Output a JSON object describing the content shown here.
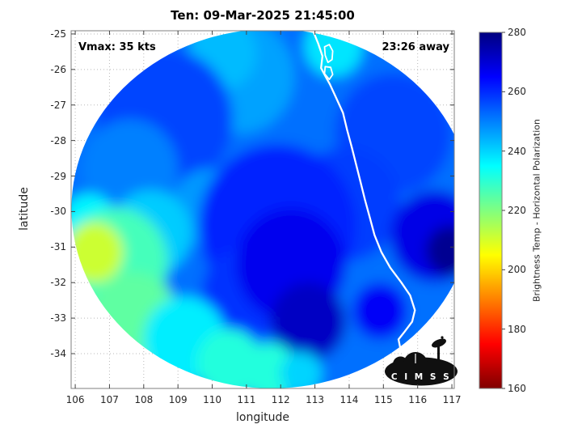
{
  "figure": {
    "title": "Ten: 09-Mar-2025 21:45:00",
    "annotations": {
      "vmax": "Vmax: 35 kts",
      "eta": "23:26 away"
    },
    "xlabel": "longitude",
    "ylabel": "latitude",
    "colorbar_label": "Brightness Temp - Horizontal Polarization",
    "logo_text": "C I M S S"
  },
  "chart_data": {
    "type": "heatmap",
    "title": "Ten: 09-Mar-2025 21:45:00",
    "xlabel": "longitude",
    "ylabel": "latitude",
    "xlim": [
      105.88,
      117.07
    ],
    "ylim": [
      -34.98,
      -24.91
    ],
    "x_ticks": [
      106,
      107,
      108,
      109,
      110,
      111,
      112,
      113,
      114,
      115,
      116,
      117
    ],
    "y_ticks": [
      -25,
      -26,
      -27,
      -28,
      -29,
      -30,
      -31,
      -32,
      -33,
      -34
    ],
    "grid": "dotted",
    "annotations": [
      {
        "text": "Vmax: 35 kts",
        "position": "top-left"
      },
      {
        "text": "23:26 away",
        "position": "top-right"
      }
    ],
    "colorbar": {
      "label": "Brightness Temp - Horizontal Polarization",
      "range": [
        160,
        280
      ],
      "ticks": [
        160,
        180,
        200,
        220,
        240,
        260,
        280
      ],
      "colormap": "jet-reversed-high-values-blue",
      "position": "right"
    },
    "swath": {
      "center_lon": 111.74,
      "center_lat": -29.92,
      "radius_lon_deg": 5.85,
      "radius_lat_deg": 5.06,
      "base_value_k": 252
    },
    "field_regions_format": [
      "lon",
      "lat",
      "radius_deg",
      "brightness_temp_k"
    ],
    "field_regions": [
      [
        110.8,
        -26.2,
        1.6,
        246
      ],
      [
        110.3,
        -25.55,
        1.0,
        243
      ],
      [
        113.55,
        -25.35,
        0.85,
        238
      ],
      [
        108.6,
        -27.4,
        2.0,
        257
      ],
      [
        107.6,
        -28.8,
        1.4,
        250
      ],
      [
        115.3,
        -27.8,
        1.7,
        257
      ],
      [
        113.9,
        -29.8,
        1.6,
        258
      ],
      [
        109.9,
        -29.9,
        1.1,
        247
      ],
      [
        108.2,
        -30.6,
        1.2,
        241
      ],
      [
        106.4,
        -30.3,
        0.8,
        236
      ],
      [
        111.9,
        -30.4,
        2.3,
        261
      ],
      [
        111.0,
        -32.3,
        1.3,
        259
      ],
      [
        112.3,
        -31.5,
        1.6,
        267
      ],
      [
        112.8,
        -33.1,
        1.1,
        272
      ],
      [
        114.9,
        -32.8,
        0.8,
        266
      ],
      [
        116.5,
        -30.7,
        1.3,
        268
      ],
      [
        116.95,
        -31.1,
        0.7,
        278
      ],
      [
        107.2,
        -31.4,
        1.5,
        227
      ],
      [
        106.55,
        -31.15,
        0.85,
        211
      ],
      [
        107.7,
        -33.0,
        1.3,
        224
      ],
      [
        109.2,
        -33.6,
        1.2,
        237
      ],
      [
        110.5,
        -34.25,
        0.95,
        231
      ],
      [
        111.7,
        -34.5,
        0.8,
        231
      ],
      [
        112.6,
        -34.55,
        0.6,
        240
      ]
    ],
    "coastline": [
      [
        112.94,
        -24.9
      ],
      [
        113.1,
        -25.28
      ],
      [
        113.22,
        -25.62
      ],
      [
        113.18,
        -25.96
      ],
      [
        113.3,
        -26.18
      ],
      [
        113.44,
        -26.42
      ],
      [
        113.62,
        -26.8
      ],
      [
        113.82,
        -27.22
      ],
      [
        113.94,
        -27.7
      ],
      [
        114.08,
        -28.2
      ],
      [
        114.2,
        -28.66
      ],
      [
        114.32,
        -29.12
      ],
      [
        114.46,
        -29.66
      ],
      [
        114.6,
        -30.16
      ],
      [
        114.74,
        -30.66
      ],
      [
        114.94,
        -31.14
      ],
      [
        115.2,
        -31.58
      ],
      [
        115.52,
        -31.99
      ],
      [
        115.78,
        -32.36
      ],
      [
        115.92,
        -32.78
      ],
      [
        115.84,
        -33.1
      ],
      [
        115.62,
        -33.38
      ],
      [
        115.44,
        -33.6
      ],
      [
        115.5,
        -33.88
      ],
      [
        115.7,
        -34.1
      ],
      [
        115.98,
        -34.26
      ]
    ],
    "islands": [
      [
        [
          113.28,
          -25.36
        ],
        [
          113.42,
          -25.3
        ],
        [
          113.52,
          -25.48
        ],
        [
          113.5,
          -25.72
        ],
        [
          113.38,
          -25.8
        ],
        [
          113.3,
          -25.6
        ]
      ],
      [
        [
          113.3,
          -25.92
        ],
        [
          113.46,
          -25.94
        ],
        [
          113.52,
          -26.14
        ],
        [
          113.42,
          -26.28
        ],
        [
          113.28,
          -26.12
        ]
      ]
    ]
  }
}
